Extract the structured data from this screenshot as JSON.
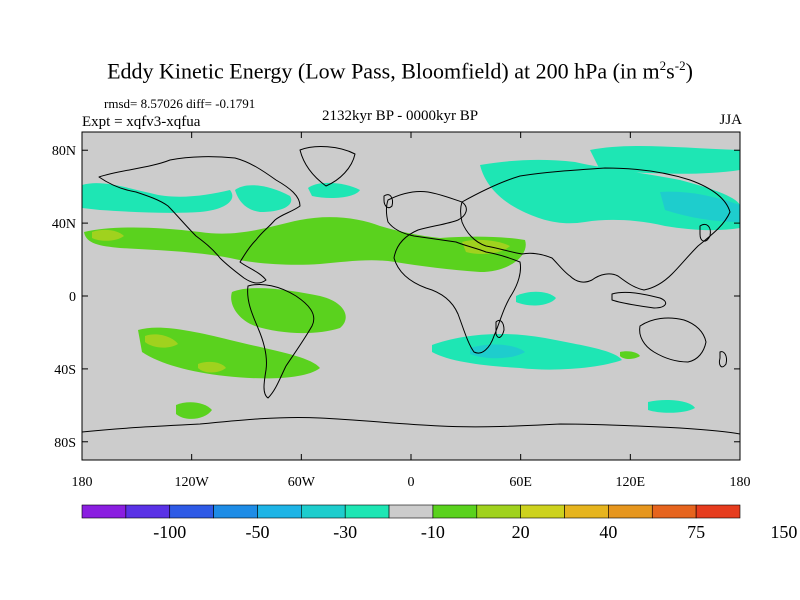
{
  "title": {
    "main": "Eddy Kinetic Energy (Low Pass, Bloomfield) at 200 hPa (in m",
    "sup1": "2",
    "s": "s",
    "sup2": "-2",
    "close": ")"
  },
  "stats": "rmsd= 8.57026 diff= -0.1791",
  "experiment": "Expt = xqfv3-xqfua",
  "period": "2132kyr BP - 0000kyr BP",
  "season": "JJA",
  "axes": {
    "x_ticks": [
      {
        "label": "180",
        "lon": -180
      },
      {
        "label": "120W",
        "lon": -120
      },
      {
        "label": "60W",
        "lon": -60
      },
      {
        "label": "0",
        "lon": 0
      },
      {
        "label": "60E",
        "lon": 60
      },
      {
        "label": "120E",
        "lon": 120
      },
      {
        "label": "180",
        "lon": 180
      }
    ],
    "y_ticks": [
      {
        "label": "80N",
        "lat": 80
      },
      {
        "label": "40N",
        "lat": 40
      },
      {
        "label": "0",
        "lat": 0
      },
      {
        "label": "40S",
        "lat": -40
      },
      {
        "label": "80S",
        "lat": -80
      }
    ],
    "lon_range": [
      -180,
      180
    ],
    "lat_range": [
      -90,
      90
    ]
  },
  "colorbar": {
    "colors": [
      "#8a1ee0",
      "#5a32e6",
      "#2e5ae6",
      "#1e8ce6",
      "#1eb4e6",
      "#1ecdcd",
      "#1ee6b4",
      "#cccccc",
      "#5ad21e",
      "#a0d21e",
      "#cdd21e",
      "#e6b41e",
      "#e6961e",
      "#e6641e",
      "#e63c1e"
    ],
    "labels": [
      {
        "text": "-100",
        "boundary": 2
      },
      {
        "text": "-50",
        "boundary": 4
      },
      {
        "text": "-30",
        "boundary": 6
      },
      {
        "text": "-10",
        "boundary": 8
      },
      {
        "text": "20",
        "boundary": 10
      },
      {
        "text": "40",
        "boundary": 12
      },
      {
        "text": "75",
        "boundary": 14
      },
      {
        "text": "150",
        "boundary": 16
      }
    ]
  }
}
